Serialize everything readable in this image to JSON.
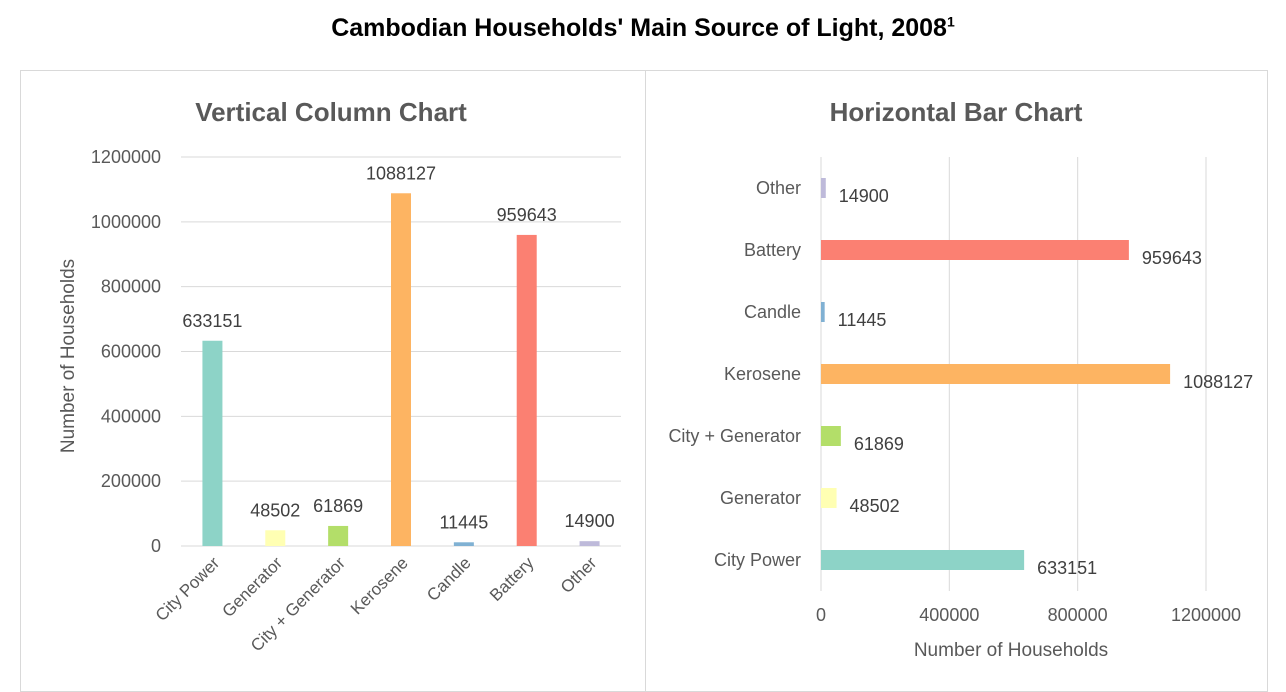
{
  "title": "Cambodian Households' Main Source of Light, 2008",
  "title_sup": "1",
  "chart_data": [
    {
      "type": "bar",
      "orientation": "vertical",
      "title": "Vertical Column Chart",
      "ylabel": "Number of Households",
      "xlabel": "",
      "ylim": [
        0,
        1200000
      ],
      "yticks": [
        "0",
        "200000",
        "400000",
        "600000",
        "800000",
        "1000000",
        "1200000"
      ],
      "grid": true,
      "categories": [
        "City Power",
        "Generator",
        "City + Generator",
        "Kerosene",
        "Candle",
        "Battery",
        "Other"
      ],
      "values": [
        633151,
        48502,
        61869,
        1088127,
        11445,
        959643,
        14900
      ],
      "value_labels": [
        "633151",
        "48502",
        "61869",
        "1088127",
        "11445",
        "959643",
        "14900"
      ],
      "colors": [
        "#8dd3c7",
        "#ffffb3",
        "#b3de69",
        "#fdb462",
        "#80b1d3",
        "#fb8072",
        "#bebada"
      ]
    },
    {
      "type": "bar",
      "orientation": "horizontal",
      "title": "Horizontal Bar Chart",
      "xlabel": "Number of Households",
      "ylabel": "",
      "xlim": [
        0,
        1200000
      ],
      "xticks": [
        "0",
        "400000",
        "800000",
        "1200000"
      ],
      "grid": true,
      "categories": [
        "City Power",
        "Generator",
        "City + Generator",
        "Kerosene",
        "Candle",
        "Battery",
        "Other"
      ],
      "values": [
        633151,
        48502,
        61869,
        1088127,
        11445,
        959643,
        14900
      ],
      "value_labels": [
        "633151",
        "48502",
        "61869",
        "1088127",
        "11445",
        "959643",
        "14900"
      ],
      "colors": [
        "#8dd3c7",
        "#ffffb3",
        "#b3de69",
        "#fdb462",
        "#80b1d3",
        "#fb8072",
        "#bebada"
      ]
    }
  ]
}
